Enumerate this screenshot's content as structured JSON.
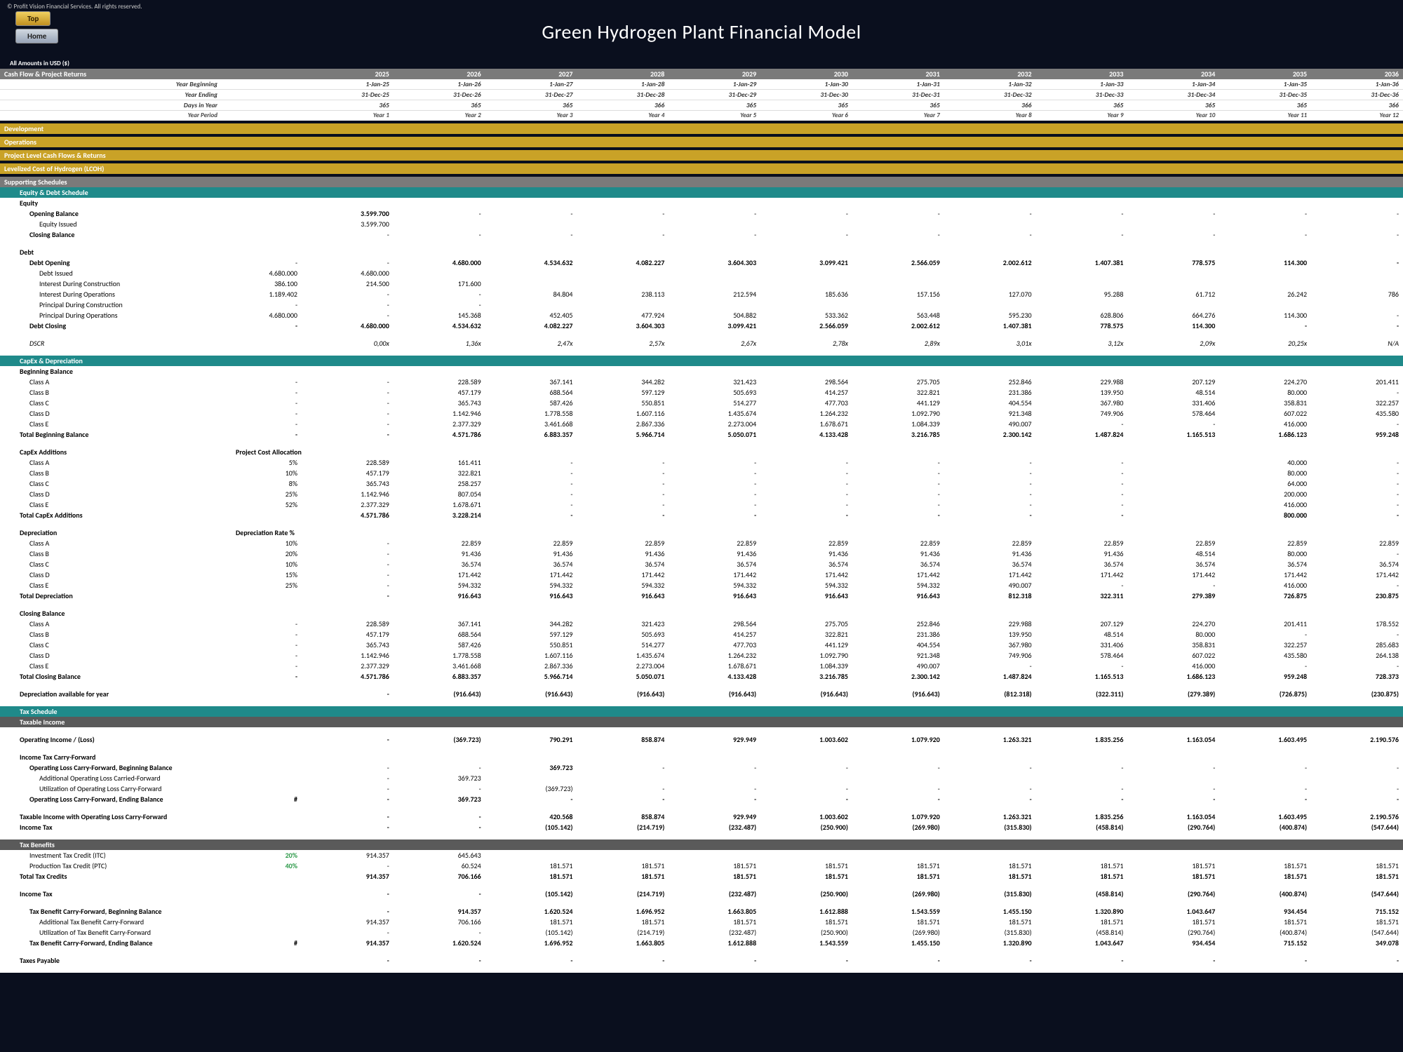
{
  "copyright": "© Profit Vision Financial Services. All rights reserved.",
  "buttons": {
    "top": "Top",
    "home": "Home"
  },
  "title": "Green Hydrogen Plant Financial Model",
  "amounts_label": "All Amounts in  USD ($)",
  "years": [
    "2025",
    "2026",
    "2027",
    "2028",
    "2029",
    "2030",
    "2031",
    "2032",
    "2033",
    "2034",
    "2035",
    "2036"
  ],
  "period_rows": {
    "yb": {
      "lbl": "Year Beginning",
      "v": [
        "1-Jan-25",
        "1-Jan-26",
        "1-Jan-27",
        "1-Jan-28",
        "1-Jan-29",
        "1-Jan-30",
        "1-Jan-31",
        "1-Jan-32",
        "1-Jan-33",
        "1-Jan-34",
        "1-Jan-35",
        "1-Jan-36"
      ]
    },
    "ye": {
      "lbl": "Year Ending",
      "v": [
        "31-Dec-25",
        "31-Dec-26",
        "31-Dec-27",
        "31-Dec-28",
        "31-Dec-29",
        "31-Dec-30",
        "31-Dec-31",
        "31-Dec-32",
        "31-Dec-33",
        "31-Dec-34",
        "31-Dec-35",
        "31-Dec-36"
      ]
    },
    "diy": {
      "lbl": "Days in Year",
      "v": [
        "365",
        "365",
        "365",
        "366",
        "365",
        "365",
        "365",
        "366",
        "365",
        "365",
        "365",
        "366"
      ]
    },
    "yp": {
      "lbl": "Year Period",
      "v": [
        "Year 1",
        "Year 2",
        "Year 3",
        "Year 4",
        "Year 5",
        "Year 6",
        "Year 7",
        "Year 8",
        "Year 9",
        "Year 10",
        "Year 11",
        "Year 12"
      ]
    }
  },
  "section_headers": {
    "cashflow": "Cash Flow & Project Returns",
    "development": "Development",
    "operations": "Operations",
    "plcf": "Project Level Cash Flows & Returns",
    "lcoh": "Levelized Cost of Hydrogen (LCOH)",
    "supporting": "Supporting Schedules",
    "eqdebt": "Equity & Debt Schedule",
    "capex": "CapEx & Depreciation",
    "tax": "Tax Schedule",
    "taxable": "Taxable Income",
    "taxben": "Tax Benefits"
  },
  "equity": {
    "hdr": "Equity",
    "ob": {
      "lbl": "Opening Balance",
      "v": [
        "3.599.700",
        "-",
        "-",
        "-",
        "-",
        "-",
        "-",
        "-",
        "-",
        "-",
        "-",
        "-"
      ]
    },
    "ei": {
      "lbl": "Equity Issued",
      "v": [
        "3.599.700",
        "",
        "",
        "",
        "",
        "",
        "",
        "",
        "",
        "",
        "",
        ""
      ]
    },
    "cb": {
      "lbl": "Closing Balance",
      "v": [
        "-",
        "-",
        "-",
        "-",
        "-",
        "-",
        "-",
        "-",
        "-",
        "-",
        "-",
        "-"
      ]
    }
  },
  "debt": {
    "hdr": "Debt",
    "do": {
      "lbl": "Debt Opening",
      "v": [
        "-",
        "-",
        "4.680.000",
        "4.534.632",
        "4.082.227",
        "3.604.303",
        "3.099.421",
        "2.566.059",
        "2.002.612",
        "1.407.381",
        "778.575",
        "114.300",
        "-"
      ]
    },
    "di": {
      "lbl": "Debt Issued",
      "v": [
        "4.680.000",
        "4.680.000",
        "",
        "",
        "",
        "",
        "",
        "",
        "",
        "",
        "",
        ""
      ]
    },
    "idc": {
      "lbl": "Interest During Construction",
      "v": [
        "386.100",
        "214.500",
        "171.600",
        "",
        "",
        "",
        "",
        "",
        "",
        "",
        "",
        ""
      ]
    },
    "ido": {
      "lbl": "Interest During Operations",
      "v": [
        "1.189.402",
        "-",
        "-",
        "84.804",
        "238.113",
        "212.594",
        "185.636",
        "157.156",
        "127.070",
        "95.288",
        "61.712",
        "26.242",
        "786",
        "-"
      ]
    },
    "pdc": {
      "lbl": "Principal During Construction",
      "v": [
        "-",
        "-",
        "-",
        "",
        "",
        "",
        "",
        "",
        "",
        "",
        "",
        ""
      ]
    },
    "pdo": {
      "lbl": "Principal During Operations",
      "v": [
        "4.680.000",
        "-",
        "145.368",
        "452.405",
        "477.924",
        "504.882",
        "533.362",
        "563.448",
        "595.230",
        "628.806",
        "664.276",
        "114.300",
        "-"
      ]
    },
    "dc": {
      "lbl": "Debt Closing",
      "v": [
        "-",
        "4.680.000",
        "4.534.632",
        "4.082.227",
        "3.604.303",
        "3.099.421",
        "2.566.059",
        "2.002.612",
        "1.407.381",
        "778.575",
        "114.300",
        "-",
        "-"
      ]
    },
    "dscr": {
      "lbl": "DSCR",
      "v": [
        "0,00x",
        "1,36x",
        "2,47x",
        "2,57x",
        "2,67x",
        "2,78x",
        "2,89x",
        "3,01x",
        "3,12x",
        "2,09x",
        "20,25x",
        "N/A"
      ]
    }
  },
  "capex_sec": {
    "bb": "Beginning Balance",
    "classA": {
      "lbl": "Class A",
      "v": [
        "-",
        "-",
        "228.589",
        "367.141",
        "344.282",
        "321.423",
        "298.564",
        "275.705",
        "252.846",
        "229.988",
        "207.129",
        "224.270",
        "201.411"
      ]
    },
    "classB": {
      "lbl": "Class B",
      "v": [
        "-",
        "-",
        "457.179",
        "688.564",
        "597.129",
        "505.693",
        "414.257",
        "322.821",
        "231.386",
        "139.950",
        "48.514",
        "80.000",
        "-"
      ]
    },
    "classC": {
      "lbl": "Class C",
      "v": [
        "-",
        "-",
        "365.743",
        "587.426",
        "550.851",
        "514.277",
        "477.703",
        "441.129",
        "404.554",
        "367.980",
        "331.406",
        "358.831",
        "322.257"
      ]
    },
    "classD": {
      "lbl": "Class D",
      "v": [
        "-",
        "-",
        "1.142.946",
        "1.778.558",
        "1.607.116",
        "1.435.674",
        "1.264.232",
        "1.092.790",
        "921.348",
        "749.906",
        "578.464",
        "607.022",
        "435.580"
      ]
    },
    "classE": {
      "lbl": "Class E",
      "v": [
        "-",
        "-",
        "2.377.329",
        "3.461.668",
        "2.867.336",
        "2.273.004",
        "1.678.671",
        "1.084.339",
        "490.007",
        "-",
        "-",
        "416.000",
        "-"
      ]
    },
    "tbb": {
      "lbl": "Total Beginning Balance",
      "v": [
        "-",
        "-",
        "4.571.786",
        "6.883.357",
        "5.966.714",
        "5.050.071",
        "4.133.428",
        "3.216.785",
        "2.300.142",
        "1.487.824",
        "1.165.513",
        "1.686.123",
        "959.248"
      ]
    },
    "add_hdr": "CapEx Additions",
    "add_col": "Project Cost Allocation",
    "aA": {
      "lbl": "Class A",
      "p": "5%",
      "v": [
        "228.589",
        "161.411",
        "-",
        "-",
        "-",
        "-",
        "-",
        "-",
        "-",
        "40.000",
        "-"
      ]
    },
    "aB": {
      "lbl": "Class B",
      "p": "10%",
      "v": [
        "457.179",
        "322.821",
        "-",
        "-",
        "-",
        "-",
        "-",
        "-",
        "-",
        "80.000",
        "-"
      ]
    },
    "aC": {
      "lbl": "Class C",
      "p": "8%",
      "v": [
        "365.743",
        "258.257",
        "-",
        "-",
        "-",
        "-",
        "-",
        "-",
        "-",
        "64.000",
        "-"
      ]
    },
    "aD": {
      "lbl": "Class D",
      "p": "25%",
      "v": [
        "1.142.946",
        "807.054",
        "-",
        "-",
        "-",
        "-",
        "-",
        "-",
        "-",
        "200.000",
        "-"
      ]
    },
    "aE": {
      "lbl": "Class E",
      "p": "52%",
      "v": [
        "2.377.329",
        "1.678.671",
        "-",
        "-",
        "-",
        "-",
        "-",
        "-",
        "-",
        "416.000",
        "-"
      ]
    },
    "aT": {
      "lbl": "Total CapEx Additions",
      "v": [
        "4.571.786",
        "3.228.214",
        "-",
        "-",
        "-",
        "-",
        "-",
        "-",
        "-",
        "800.000",
        "-"
      ]
    },
    "dep_hdr": "Depreciation",
    "dep_col": "Depreciation Rate %",
    "dA": {
      "lbl": "Class A",
      "p": "10%",
      "v": [
        "-",
        "22.859",
        "22.859",
        "22.859",
        "22.859",
        "22.859",
        "22.859",
        "22.859",
        "22.859",
        "22.859",
        "22.859",
        "22.859"
      ]
    },
    "dB": {
      "lbl": "Class B",
      "p": "20%",
      "v": [
        "-",
        "91.436",
        "91.436",
        "91.436",
        "91.436",
        "91.436",
        "91.436",
        "91.436",
        "91.436",
        "48.514",
        "80.000",
        "-"
      ]
    },
    "dC": {
      "lbl": "Class C",
      "p": "10%",
      "v": [
        "-",
        "36.574",
        "36.574",
        "36.574",
        "36.574",
        "36.574",
        "36.574",
        "36.574",
        "36.574",
        "36.574",
        "36.574",
        "36.574"
      ]
    },
    "dD": {
      "lbl": "Class D",
      "p": "15%",
      "v": [
        "-",
        "171.442",
        "171.442",
        "171.442",
        "171.442",
        "171.442",
        "171.442",
        "171.442",
        "171.442",
        "171.442",
        "171.442",
        "171.442"
      ]
    },
    "dE": {
      "lbl": "Class E",
      "p": "25%",
      "v": [
        "-",
        "594.332",
        "594.332",
        "594.332",
        "594.332",
        "594.332",
        "594.332",
        "490.007",
        "-",
        "-",
        "416.000",
        "-"
      ]
    },
    "dT": {
      "lbl": "Total Depreciation",
      "v": [
        "-",
        "916.643",
        "916.643",
        "916.643",
        "916.643",
        "916.643",
        "916.643",
        "812.318",
        "322.311",
        "279.389",
        "726.875",
        "230.875"
      ]
    },
    "cb_hdr": "Closing Balance",
    "cA": {
      "lbl": "Class A",
      "v": [
        "-",
        "228.589",
        "367.141",
        "344.282",
        "321.423",
        "298.564",
        "275.705",
        "252.846",
        "229.988",
        "207.129",
        "224.270",
        "201.411",
        "178.552"
      ]
    },
    "cB": {
      "lbl": "Class B",
      "v": [
        "-",
        "457.179",
        "688.564",
        "597.129",
        "505.693",
        "414.257",
        "322.821",
        "231.386",
        "139.950",
        "48.514",
        "80.000",
        "-",
        "-"
      ]
    },
    "cC": {
      "lbl": "Class C",
      "v": [
        "-",
        "365.743",
        "587.426",
        "550.851",
        "514.277",
        "477.703",
        "441.129",
        "404.554",
        "367.980",
        "331.406",
        "358.831",
        "322.257",
        "285.683"
      ]
    },
    "cD": {
      "lbl": "Class D",
      "v": [
        "-",
        "1.142.946",
        "1.778.558",
        "1.607.116",
        "1.435.674",
        "1.264.232",
        "1.092.790",
        "921.348",
        "749.906",
        "578.464",
        "607.022",
        "435.580",
        "264.138"
      ]
    },
    "cE": {
      "lbl": "Class E",
      "v": [
        "-",
        "2.377.329",
        "3.461.668",
        "2.867.336",
        "2.273.004",
        "1.678.671",
        "1.084.339",
        "490.007",
        "-",
        "-",
        "416.000",
        "-",
        "-"
      ]
    },
    "cT": {
      "lbl": "Total Closing Balance",
      "v": [
        "-",
        "4.571.786",
        "6.883.357",
        "5.966.714",
        "5.050.071",
        "4.133.428",
        "3.216.785",
        "2.300.142",
        "1.487.824",
        "1.165.513",
        "1.686.123",
        "959.248",
        "728.373"
      ]
    },
    "dav": {
      "lbl": "Depreciation available for year",
      "v": [
        "-",
        "(916.643)",
        "(916.643)",
        "(916.643)",
        "(916.643)",
        "(916.643)",
        "(916.643)",
        "(812.318)",
        "(322.311)",
        "(279.389)",
        "(726.875)",
        "(230.875)"
      ]
    }
  },
  "tax": {
    "oi": {
      "lbl": "Operating Income / (Loss)",
      "v": [
        "-",
        "(369.723)",
        "790.291",
        "858.874",
        "929.949",
        "1.003.602",
        "1.079.920",
        "1.263.321",
        "1.835.256",
        "1.163.054",
        "1.603.495",
        "2.190.576"
      ]
    },
    "cf_hdr": "Income Tax Carry-Forward",
    "olcfbb": {
      "lbl": "Operating Loss Carry-Forward, Beginning Balance",
      "v": [
        "-",
        "-",
        "369.723",
        "-",
        "-",
        "-",
        "-",
        "-",
        "-",
        "-",
        "-",
        "-"
      ]
    },
    "aolcf": {
      "lbl": "Additional Operating Loss Carried-Forward",
      "v": [
        "-",
        "369.723",
        "",
        "",
        "",
        "",
        "",
        "",
        "",
        "",
        "",
        ""
      ]
    },
    "uolcf": {
      "lbl": "Utilization of Operating Loss Carry-Forward",
      "v": [
        "-",
        "-",
        "(369.723)",
        "-",
        "-",
        "-",
        "-",
        "-",
        "-",
        "-",
        "-",
        "-"
      ]
    },
    "olcfeb": {
      "lbl": "Operating Loss Carry-Forward, Ending Balance",
      "pre": "#",
      "v": [
        "-",
        "369.723",
        "-",
        "-",
        "-",
        "-",
        "-",
        "-",
        "-",
        "-",
        "-",
        "-"
      ]
    },
    "tiocf": {
      "lbl": "Taxable Income with Operating Loss Carry-Forward",
      "v": [
        "-",
        "-",
        "420.568",
        "858.874",
        "929.949",
        "1.003.602",
        "1.079.920",
        "1.263.321",
        "1.835.256",
        "1.163.054",
        "1.603.495",
        "2.190.576"
      ]
    },
    "it": {
      "lbl": "Income Tax",
      "v": [
        "-",
        "-",
        "(105.142)",
        "(214.719)",
        "(232.487)",
        "(250.900)",
        "(269.980)",
        "(315.830)",
        "(458.814)",
        "(290.764)",
        "(400.874)",
        "(547.644)"
      ]
    },
    "itc": {
      "lbl": "Investment Tax Credit (ITC)",
      "p": "20%",
      "v": [
        "914.357",
        "645.643",
        "",
        "",
        "",
        "",
        "",
        "",
        "",
        "",
        "",
        ""
      ]
    },
    "ptc": {
      "lbl": "Production Tax Credit (PTC)",
      "p": "40%",
      "v": [
        "-",
        "60.524",
        "181.571",
        "181.571",
        "181.571",
        "181.571",
        "181.571",
        "181.571",
        "181.571",
        "181.571",
        "181.571",
        "181.571"
      ]
    },
    "ttc": {
      "lbl": "Total Tax Credits",
      "v": [
        "914.357",
        "706.166",
        "181.571",
        "181.571",
        "181.571",
        "181.571",
        "181.571",
        "181.571",
        "181.571",
        "181.571",
        "181.571",
        "181.571"
      ]
    },
    "it2": {
      "lbl": "Income Tax",
      "v": [
        "-",
        "-",
        "(105.142)",
        "(214.719)",
        "(232.487)",
        "(250.900)",
        "(269.980)",
        "(315.830)",
        "(458.814)",
        "(290.764)",
        "(400.874)",
        "(547.644)"
      ]
    },
    "tbcfbb": {
      "lbl": "Tax Benefit Carry-Forward, Beginning Balance",
      "v": [
        "-",
        "914.357",
        "1.620.524",
        "1.696.952",
        "1.663.805",
        "1.612.888",
        "1.543.559",
        "1.455.150",
        "1.320.890",
        "1.043.647",
        "934.454",
        "715.152"
      ]
    },
    "atbcf": {
      "lbl": "Additional Tax Benefit Carry-Forward",
      "v": [
        "914.357",
        "706.166",
        "181.571",
        "181.571",
        "181.571",
        "181.571",
        "181.571",
        "181.571",
        "181.571",
        "181.571",
        "181.571",
        "181.571"
      ]
    },
    "utbcf": {
      "lbl": "Utilization of Tax Benefit Carry-Forward",
      "v": [
        "-",
        "-",
        "(105.142)",
        "(214.719)",
        "(232.487)",
        "(250.900)",
        "(269.980)",
        "(315.830)",
        "(458.814)",
        "(290.764)",
        "(400.874)",
        "(547.644)"
      ]
    },
    "tbcfeb": {
      "lbl": "Tax Benefit Carry-Forward, Ending Balance",
      "pre": "#",
      "v": [
        "914.357",
        "1.620.524",
        "1.696.952",
        "1.663.805",
        "1.612.888",
        "1.543.559",
        "1.455.150",
        "1.320.890",
        "1.043.647",
        "934.454",
        "715.152",
        "349.078"
      ]
    },
    "tp": {
      "lbl": "Taxes Payable",
      "v": [
        "-",
        "-",
        "-",
        "-",
        "-",
        "-",
        "-",
        "-",
        "-",
        "-",
        "-",
        "-"
      ]
    }
  }
}
